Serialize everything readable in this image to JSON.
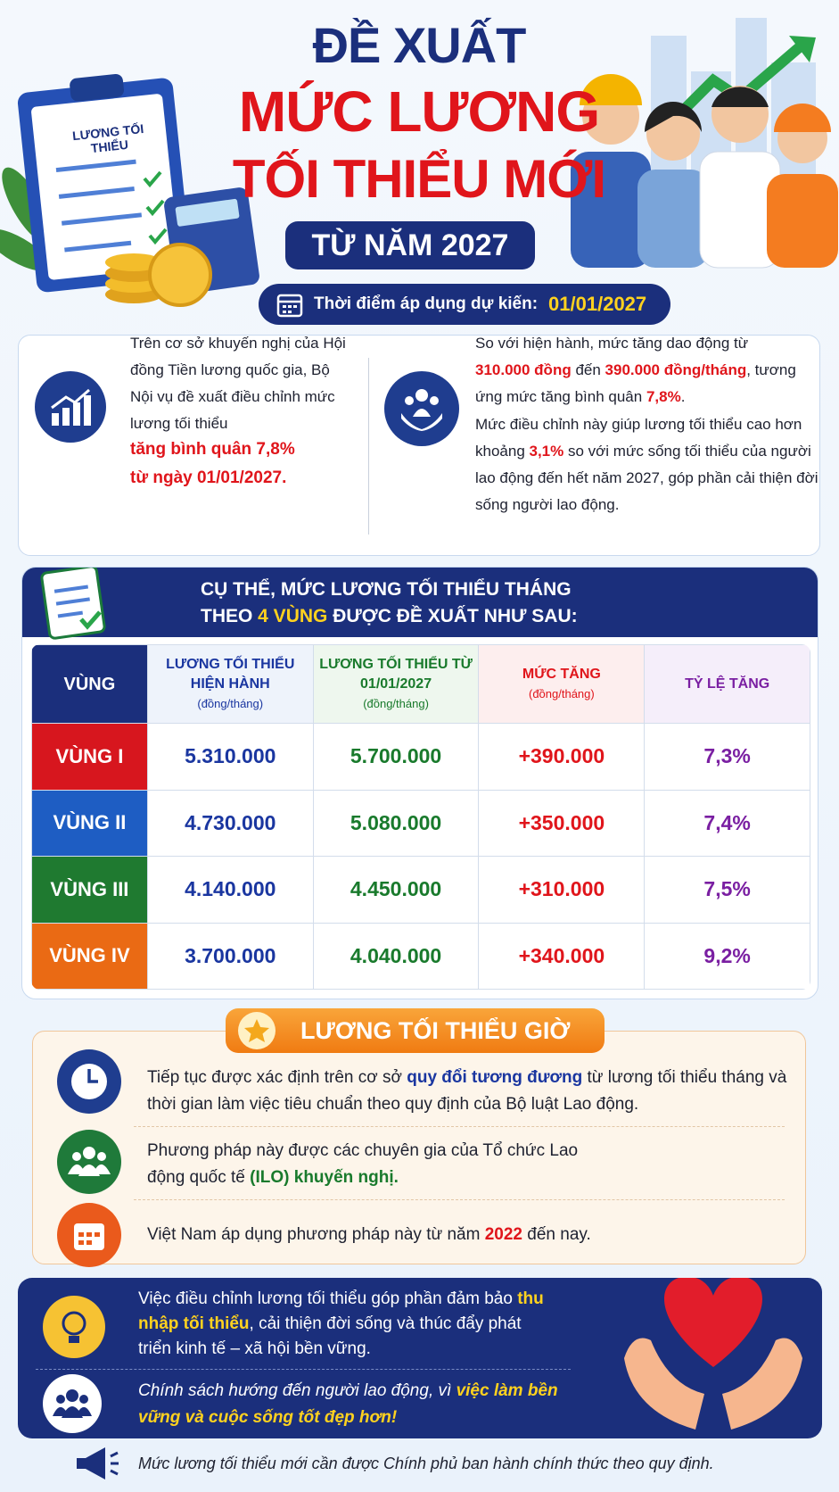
{
  "header": {
    "title_line1": "ĐỀ XUẤT",
    "title_line2": "MỨC LƯƠNG",
    "title_line3": "TỐI THIỂU MỚI",
    "year_badge": "TỪ NĂM 2027",
    "clipboard_label": "LƯƠNG TỐI THIỂU",
    "date_label": "Thời điểm áp dụng dự kiến:",
    "date_value": "01/01/2027"
  },
  "intro": {
    "left": {
      "paragraph": "Trên cơ sở khuyến nghị của Hội đồng Tiền lương quốc gia, Bộ Nội vụ đề xuất điều chỉnh mức lương tối thiểu",
      "highlight": "tăng bình quân 7,8% từ ngày 01/01/2027."
    },
    "right": {
      "paragraph1": [
        "So với hiện hành, mức tăng dao động từ ",
        "310.000 đồng",
        " đến ",
        "390.000 đồng/tháng",
        ", tương ứng mức tăng bình quân ",
        "7,8%",
        "."
      ],
      "paragraph2": [
        "Mức điều chỉnh này giúp lương tối thiểu cao hơn khoảng ",
        "3,1%",
        " so với mức sống tối thiểu của người lao động đến hết năm 2027, góp phần cải thiện đời sống người lao động."
      ]
    }
  },
  "table": {
    "title_line1": "CỤ THỂ, MỨC LƯƠNG TỐI THIỂU THÁNG",
    "title_line2": [
      "THEO ",
      "4 VÙNG",
      " ĐƯỢC ĐỀ XUẤT NHƯ SAU:"
    ],
    "columns": [
      {
        "title": "VÙNG"
      },
      {
        "title": "LƯƠNG TỐI THIỂU HIỆN HÀNH",
        "unit": "(đồng/tháng)"
      },
      {
        "title": "LƯƠNG TỐI THIỂU TỪ 01/01/2027",
        "unit": "(đồng/tháng)"
      },
      {
        "title": "MỨC TĂNG",
        "unit": "(đồng/tháng)"
      },
      {
        "title": "TỶ LỆ TĂNG"
      }
    ],
    "rows": [
      [
        "VÙNG I",
        "5.310.000",
        "5.700.000",
        "+390.000",
        "7,3%"
      ],
      [
        "VÙNG II",
        "4.730.000",
        "5.080.000",
        "+350.000",
        "7,4%"
      ],
      [
        "VÙNG III",
        "4.140.000",
        "4.450.000",
        "+310.000",
        "7,5%"
      ],
      [
        "VÙNG IV",
        "3.700.000",
        "4.040.000",
        "+340.000",
        "9,2%"
      ]
    ]
  },
  "hourly": {
    "title": "LƯƠNG TỐI THIỂU GIỜ",
    "items": [
      [
        "Tiếp tục được xác định trên cơ sở ",
        "quy đổi tương đương",
        " từ lương tối thiểu tháng và thời gian làm việc tiêu chuẩn theo quy định của Bộ luật Lao động."
      ],
      [
        "Phương pháp này được các chuyên gia của Tổ chức Lao động quốc tế ",
        "(ILO) khuyến nghị."
      ],
      [
        "Việt Nam áp dụng phương pháp này từ năm ",
        "2022",
        " đến nay."
      ]
    ]
  },
  "closing": {
    "items": [
      [
        "Việc điều chỉnh lương tối thiểu góp phần đảm bảo ",
        "thu nhập tối thiểu",
        ", cải thiện đời sống và thúc đẩy phát triển kinh tế – xã hội bền vững."
      ],
      [
        "Chính sách hướng đến người lao động, vì ",
        "việc làm bền vững và cuộc sống tốt đẹp hơn!"
      ]
    ],
    "note": "Mức lương tối thiểu mới cần được Chính phủ ban hành chính thức theo quy định."
  }
}
